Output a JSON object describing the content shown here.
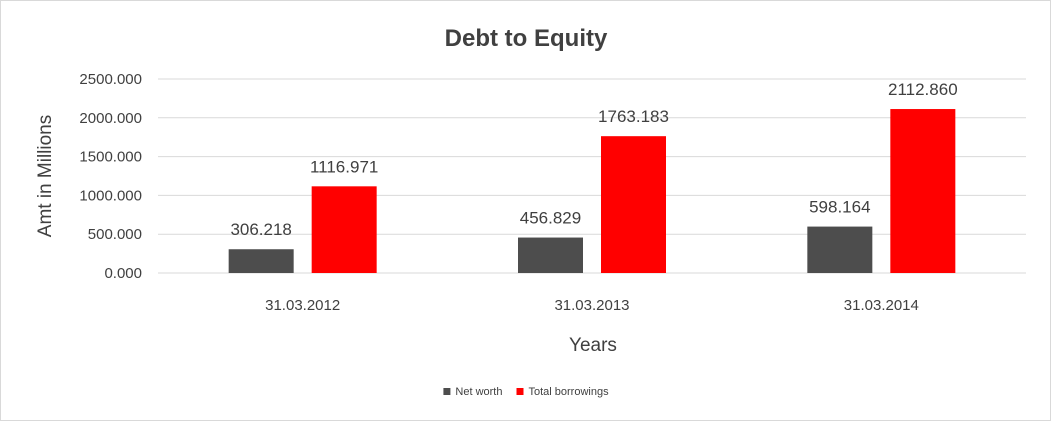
{
  "chart_data": {
    "type": "bar",
    "title": "Debt to Equity",
    "xlabel": "Years",
    "ylabel": "Amt in Millions",
    "categories": [
      "31.03.2012",
      "31.03.2013",
      "31.03.2014"
    ],
    "series": [
      {
        "name": "Net worth",
        "values": [
          306.218,
          456.829,
          598.164
        ],
        "labels": [
          "306.218",
          "456.829",
          "598.164"
        ],
        "color": "#4d4d4d"
      },
      {
        "name": "Total borrowings",
        "values": [
          1116.971,
          1763.183,
          2112.86
        ],
        "labels": [
          "1116.971",
          "1763.183",
          "2112.860"
        ],
        "color": "#ff0000"
      }
    ],
    "ylim": [
      0,
      2500
    ],
    "yticks": [
      "0.000",
      "500.000",
      "1000.000",
      "1500.000",
      "2000.000",
      "2500.000"
    ],
    "grid": true,
    "legend_position": "bottom"
  }
}
